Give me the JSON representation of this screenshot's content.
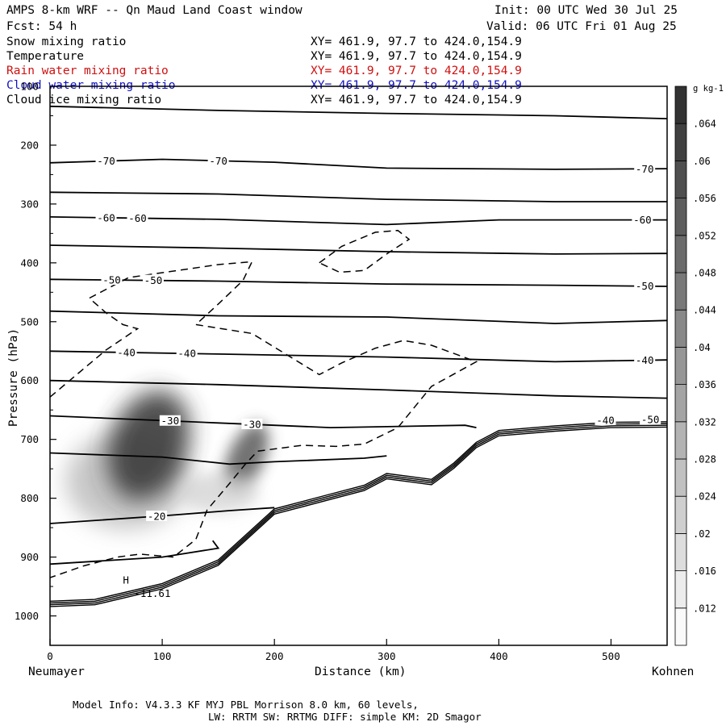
{
  "header": {
    "title": "AMPS 8-km WRF -- Qn Maud Land Coast window",
    "forecast": "Fcst:   54 h",
    "init": "Init: 00 UTC Wed 30 Jul 25",
    "valid": "Valid: 06 UTC Fri 01 Aug 25"
  },
  "fields": [
    {
      "name": "Snow mixing ratio",
      "xy": "XY= 461.9, 97.7 to 424.0,154.9",
      "color": "#000000"
    },
    {
      "name": "Temperature",
      "xy": "XY= 461.9, 97.7 to 424.0,154.9",
      "color": "#000000"
    },
    {
      "name": "Rain water mixing ratio",
      "xy": "XY= 461.9, 97.7 to 424.0,154.9",
      "color": "#d01010"
    },
    {
      "name": "Cloud water mixing ratio",
      "xy": "XY= 461.9, 97.7 to 424.0,154.9",
      "color": "#1010c0"
    },
    {
      "name": "Cloud ice mixing ratio",
      "xy": "XY= 461.9, 97.7 to 424.0,154.9",
      "color": "#000000"
    }
  ],
  "footer": {
    "model_info": "Model Info: V4.3.3   KF      MYJ PBL  Morrison              8.0 km,  60 levels,",
    "physics": "LW: RRTM SW: RRTMG   DIFF: simple KM: 2D Smagor"
  },
  "chart_data": {
    "type": "contour",
    "xlabel": "Distance (km)",
    "ylabel": "Pressure (hPa)",
    "xlim": [
      0,
      550
    ],
    "ylim": [
      1050,
      100
    ],
    "xticks": [
      0,
      100,
      200,
      300,
      400,
      500
    ],
    "yticks": [
      100,
      200,
      300,
      400,
      500,
      600,
      700,
      800,
      900,
      1000
    ],
    "left_endpoint": "Neumayer",
    "right_endpoint": "Kohnen",
    "colorbar": {
      "unit": "g kg-1",
      "labels": [
        ".012",
        ".016",
        ".02",
        ".024",
        ".028",
        ".032",
        ".036",
        ".04",
        ".044",
        ".048",
        ".052",
        ".056",
        ".06",
        ".064"
      ]
    },
    "temperature_isotherms": [
      {
        "points": [
          [
            0,
            134
          ],
          [
            150,
            141
          ],
          [
            300,
            146
          ],
          [
            450,
            150
          ],
          [
            550,
            155
          ]
        ]
      },
      {
        "points": [
          [
            0,
            230
          ],
          [
            100,
            224
          ],
          [
            200,
            229
          ],
          [
            300,
            239
          ],
          [
            450,
            241
          ],
          [
            550,
            240
          ]
        ],
        "labels": [
          {
            "text": "-70",
            "x": 50
          },
          {
            "text": "-70",
            "x": 150
          },
          {
            "text": "-70",
            "x": 530
          }
        ]
      },
      {
        "points": [
          [
            0,
            280
          ],
          [
            150,
            283
          ],
          [
            300,
            292
          ],
          [
            450,
            296
          ],
          [
            550,
            296
          ]
        ]
      },
      {
        "points": [
          [
            0,
            322
          ],
          [
            150,
            326
          ],
          [
            300,
            335
          ],
          [
            400,
            327
          ],
          [
            550,
            327
          ]
        ],
        "labels": [
          {
            "text": "-60",
            "x": 50
          },
          {
            "text": "-60",
            "x": 78
          },
          {
            "text": "-60",
            "x": 528
          }
        ]
      },
      {
        "points": [
          [
            0,
            370
          ],
          [
            150,
            375
          ],
          [
            300,
            381
          ],
          [
            450,
            385
          ],
          [
            550,
            384
          ]
        ]
      },
      {
        "points": [
          [
            0,
            428
          ],
          [
            150,
            431
          ],
          [
            300,
            436
          ],
          [
            450,
            438
          ],
          [
            550,
            440
          ]
        ],
        "labels": [
          {
            "text": "-50",
            "x": 55
          },
          {
            "text": "-50",
            "x": 92
          },
          {
            "text": "-50",
            "x": 530
          }
        ]
      },
      {
        "points": [
          [
            0,
            482
          ],
          [
            150,
            490
          ],
          [
            300,
            492
          ],
          [
            450,
            503
          ],
          [
            550,
            498
          ]
        ]
      },
      {
        "points": [
          [
            0,
            550
          ],
          [
            150,
            555
          ],
          [
            300,
            560
          ],
          [
            450,
            568
          ],
          [
            550,
            565
          ]
        ],
        "labels": [
          {
            "text": "-40",
            "x": 68
          },
          {
            "text": "-40",
            "x": 122
          },
          {
            "text": "-40",
            "x": 530
          }
        ]
      },
      {
        "points": [
          [
            0,
            600
          ],
          [
            150,
            607
          ],
          [
            300,
            616
          ],
          [
            450,
            626
          ],
          [
            550,
            630
          ]
        ]
      },
      {
        "points": [
          [
            0,
            660
          ],
          [
            150,
            672
          ],
          [
            250,
            680
          ],
          [
            370,
            676
          ],
          [
            380,
            680
          ]
        ],
        "labels": [
          {
            "text": "-30",
            "x": 107
          },
          {
            "text": "-30",
            "x": 180
          }
        ]
      },
      {
        "points": [
          [
            0,
            723
          ],
          [
            100,
            730
          ],
          [
            160,
            742
          ],
          [
            200,
            738
          ],
          [
            280,
            732
          ],
          [
            300,
            728
          ]
        ]
      },
      {
        "points": [
          [
            0,
            843
          ],
          [
            100,
            830
          ],
          [
            160,
            821
          ],
          [
            200,
            816
          ]
        ],
        "labels": [
          {
            "text": "-20",
            "x": 95
          }
        ]
      },
      {
        "points": [
          [
            0,
            912
          ],
          [
            100,
            900
          ],
          [
            150,
            885
          ],
          [
            145,
            872
          ]
        ]
      }
    ],
    "terrain": {
      "points": [
        [
          0,
          975
        ],
        [
          40,
          972
        ],
        [
          100,
          945
        ],
        [
          150,
          905
        ],
        [
          200,
          818
        ],
        [
          250,
          793
        ],
        [
          280,
          778
        ],
        [
          300,
          758
        ],
        [
          320,
          763
        ],
        [
          340,
          768
        ],
        [
          360,
          740
        ],
        [
          380,
          705
        ],
        [
          400,
          685
        ],
        [
          450,
          677
        ],
        [
          500,
          671
        ],
        [
          550,
          670
        ]
      ],
      "labels": [
        {
          "text": "-40",
          "x": 495
        },
        {
          "text": "-50",
          "x": 535
        }
      ]
    },
    "cloud_contours": [
      {
        "points": [
          [
            0,
            628
          ],
          [
            50,
            548
          ],
          [
            78,
            512
          ],
          [
            65,
            505
          ],
          [
            50,
            485
          ],
          [
            35,
            460
          ],
          [
            70,
            425
          ],
          [
            150,
            403
          ],
          [
            180,
            398
          ],
          [
            172,
            430
          ],
          [
            150,
            470
          ],
          [
            130,
            505
          ],
          [
            180,
            520
          ],
          [
            210,
            555
          ],
          [
            240,
            590
          ],
          [
            260,
            570
          ],
          [
            290,
            545
          ],
          [
            315,
            532
          ],
          [
            340,
            540
          ],
          [
            380,
            568
          ],
          [
            340,
            610
          ],
          [
            310,
            680
          ],
          [
            280,
            708
          ],
          [
            255,
            712
          ],
          [
            225,
            710
          ],
          [
            185,
            720
          ],
          [
            175,
            740
          ],
          [
            160,
            775
          ],
          [
            140,
            820
          ],
          [
            130,
            870
          ],
          [
            110,
            900
          ],
          [
            80,
            895
          ],
          [
            60,
            900
          ],
          [
            30,
            915
          ],
          [
            0,
            935
          ]
        ]
      },
      {
        "points": [
          [
            240,
            400
          ],
          [
            260,
            372
          ],
          [
            290,
            348
          ],
          [
            310,
            345
          ],
          [
            320,
            360
          ],
          [
            300,
            385
          ],
          [
            280,
            413
          ],
          [
            258,
            416
          ],
          [
            240,
            400
          ]
        ]
      }
    ],
    "snow_maxima": [
      {
        "x": 88,
        "p": 710,
        "max": 0.064
      },
      {
        "x": 175,
        "p": 730,
        "max": 0.05
      }
    ],
    "annotations": [
      {
        "text": "H",
        "x": 65,
        "p": 945
      },
      {
        "text": "-11.61",
        "x": 75,
        "p": 968
      }
    ]
  }
}
